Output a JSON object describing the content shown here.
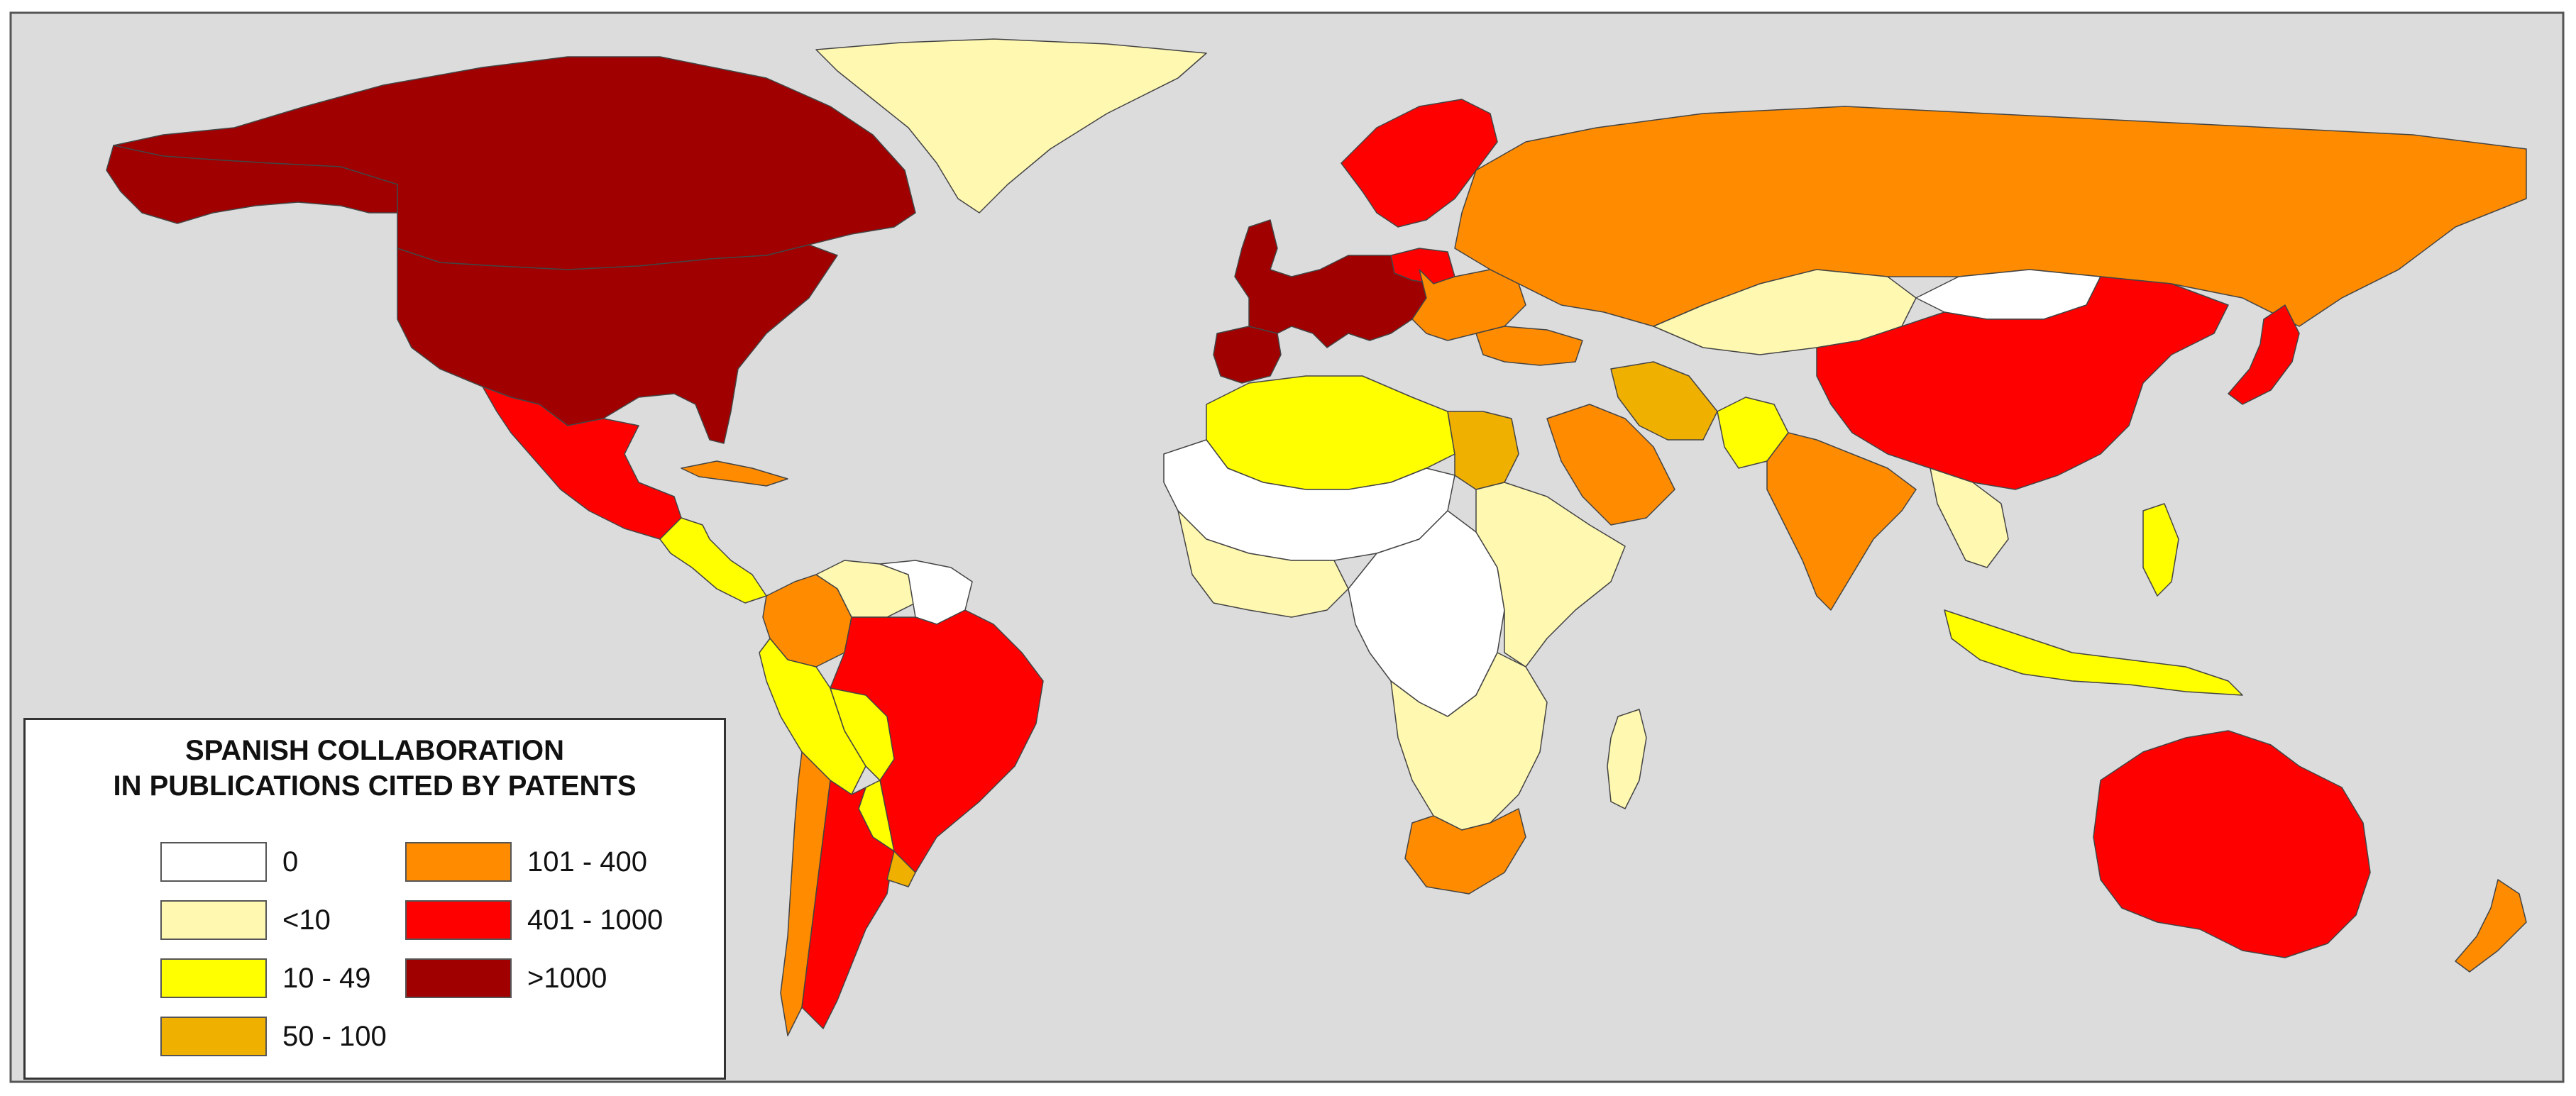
{
  "map": {
    "ocean_color": "#dcdcdc",
    "border_color": "#444444",
    "regions": [
      {
        "name": "Canada",
        "class": ">1000"
      },
      {
        "name": "United States",
        "class": ">1000"
      },
      {
        "name": "Alaska",
        "class": ">1000"
      },
      {
        "name": "Greenland",
        "class": "<10"
      },
      {
        "name": "Mexico",
        "class": "401 - 1000"
      },
      {
        "name": "Central America",
        "class": "10 - 49"
      },
      {
        "name": "Cuba",
        "class": "101 - 400"
      },
      {
        "name": "Colombia",
        "class": "101 - 400"
      },
      {
        "name": "Venezuela",
        "class": "<10"
      },
      {
        "name": "Guianas",
        "class": "0"
      },
      {
        "name": "Peru",
        "class": "10 - 49"
      },
      {
        "name": "Brazil",
        "class": "401 - 1000"
      },
      {
        "name": "Bolivia",
        "class": "10 - 49"
      },
      {
        "name": "Paraguay",
        "class": "10 - 49"
      },
      {
        "name": "Chile",
        "class": "101 - 400"
      },
      {
        "name": "Argentina",
        "class": "401 - 1000"
      },
      {
        "name": "Uruguay",
        "class": "50 - 100"
      },
      {
        "name": "Spain",
        "class": ">1000"
      },
      {
        "name": "Western Europe",
        "class": ">1000"
      },
      {
        "name": "Scandinavia",
        "class": "401 - 1000"
      },
      {
        "name": "Poland",
        "class": "401 - 1000"
      },
      {
        "name": "Eastern Europe",
        "class": "101 - 400"
      },
      {
        "name": "Russia",
        "class": "101 - 400"
      },
      {
        "name": "Kazakhstan",
        "class": "<10"
      },
      {
        "name": "Mongolia",
        "class": "0"
      },
      {
        "name": "China",
        "class": "401 - 1000"
      },
      {
        "name": "Japan",
        "class": "401 - 1000"
      },
      {
        "name": "Turkey",
        "class": "101 - 400"
      },
      {
        "name": "Iran",
        "class": "50 - 100"
      },
      {
        "name": "Saudi Arabia",
        "class": "101 - 400"
      },
      {
        "name": "Pakistan",
        "class": "10 - 49"
      },
      {
        "name": "India",
        "class": "101 - 400"
      },
      {
        "name": "Southeast Asia",
        "class": "<10"
      },
      {
        "name": "Indonesia",
        "class": "10 - 49"
      },
      {
        "name": "Philippines",
        "class": "10 - 49"
      },
      {
        "name": "Australia",
        "class": "401 - 1000"
      },
      {
        "name": "New Zealand",
        "class": "101 - 400"
      },
      {
        "name": "North Africa",
        "class": "10 - 49"
      },
      {
        "name": "Egypt",
        "class": "50 - 100"
      },
      {
        "name": "Sahel",
        "class": "0"
      },
      {
        "name": "West Africa",
        "class": "<10"
      },
      {
        "name": "Central Africa",
        "class": "0"
      },
      {
        "name": "East Africa",
        "class": "<10"
      },
      {
        "name": "Southern Africa",
        "class": "<10"
      },
      {
        "name": "South Africa",
        "class": "101 - 400"
      },
      {
        "name": "Madagascar",
        "class": "<10"
      }
    ]
  },
  "legend": {
    "title_line1": "SPANISH COLLABORATION",
    "title_line2": "IN PUBLICATIONS CITED BY PATENTS",
    "classes": [
      {
        "label": "0",
        "color": "#ffffff"
      },
      {
        "label": "<10",
        "color": "#fff8b0"
      },
      {
        "label": "10 - 49",
        "color": "#ffff00"
      },
      {
        "label": "50 - 100",
        "color": "#f0b000"
      },
      {
        "label": "101 - 400",
        "color": "#ff8c00"
      },
      {
        "label": "401 - 1000",
        "color": "#ff0000"
      },
      {
        "label": ">1000",
        "color": "#a00000"
      }
    ]
  }
}
